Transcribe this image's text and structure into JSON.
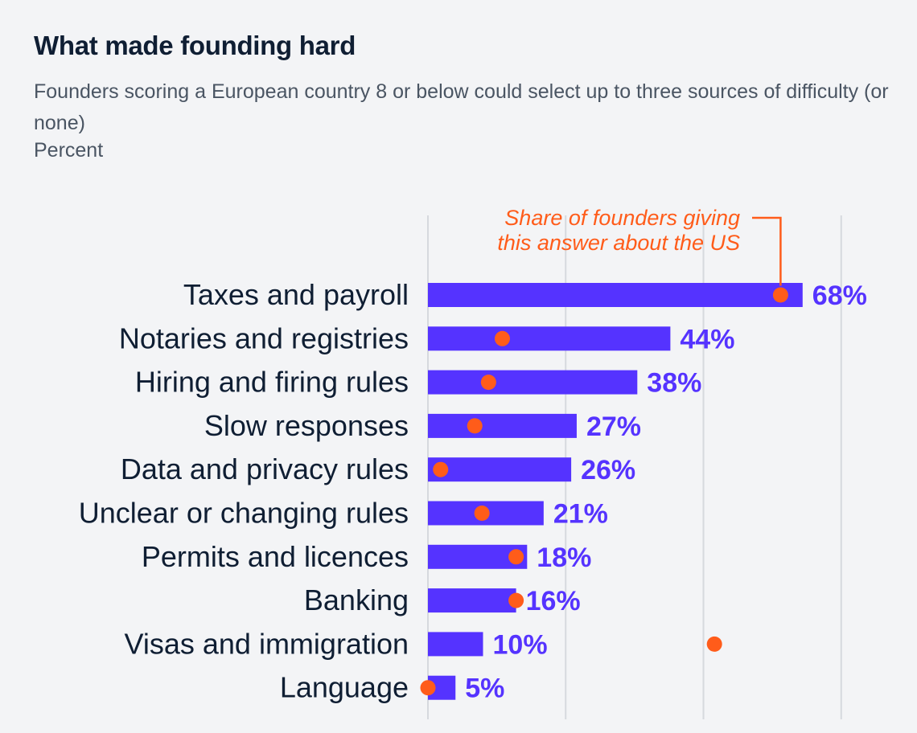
{
  "header": {
    "title": "What made founding hard",
    "subtitle": "Founders scoring a European country 8 or below could select up to three sources of difficulty (or none)",
    "unit": "Percent"
  },
  "colors": {
    "bar": "#5533ff",
    "dot": "#ff5c1a",
    "grid": "#d6d9de",
    "text": "#0f1e33"
  },
  "chart_data": {
    "type": "bar",
    "orientation": "horizontal",
    "title": "What made founding hard",
    "subtitle": "Founders scoring a European country 8 or below could select up to three sources of difficulty (or none)",
    "unit": "Percent",
    "categories": [
      "Taxes and payroll",
      "Notaries and registries",
      "Hiring and firing rules",
      "Slow responses",
      "Data and privacy rules",
      "Unclear or changing rules",
      "Permits and licences",
      "Banking",
      "Visas and immigration",
      "Language"
    ],
    "series": [
      {
        "values": [
          68,
          44,
          38,
          27,
          26,
          21,
          18,
          16,
          10,
          5
        ],
        "labels": [
          "68%",
          "44%",
          "38%",
          "27%",
          "26%",
          "21%",
          "18%",
          "16%",
          "10%",
          "5%"
        ]
      },
      {
        "name": "Share of founders giving this answer about the US",
        "values": [
          64,
          13.5,
          11,
          8.5,
          2.3,
          9.8,
          16,
          16,
          52,
          0
        ]
      }
    ],
    "annotation": "Share of founders giving this answer about the US",
    "xlim": [
      0,
      75
    ],
    "gridlines": [
      0,
      25,
      50,
      75
    ],
    "grid": true
  }
}
